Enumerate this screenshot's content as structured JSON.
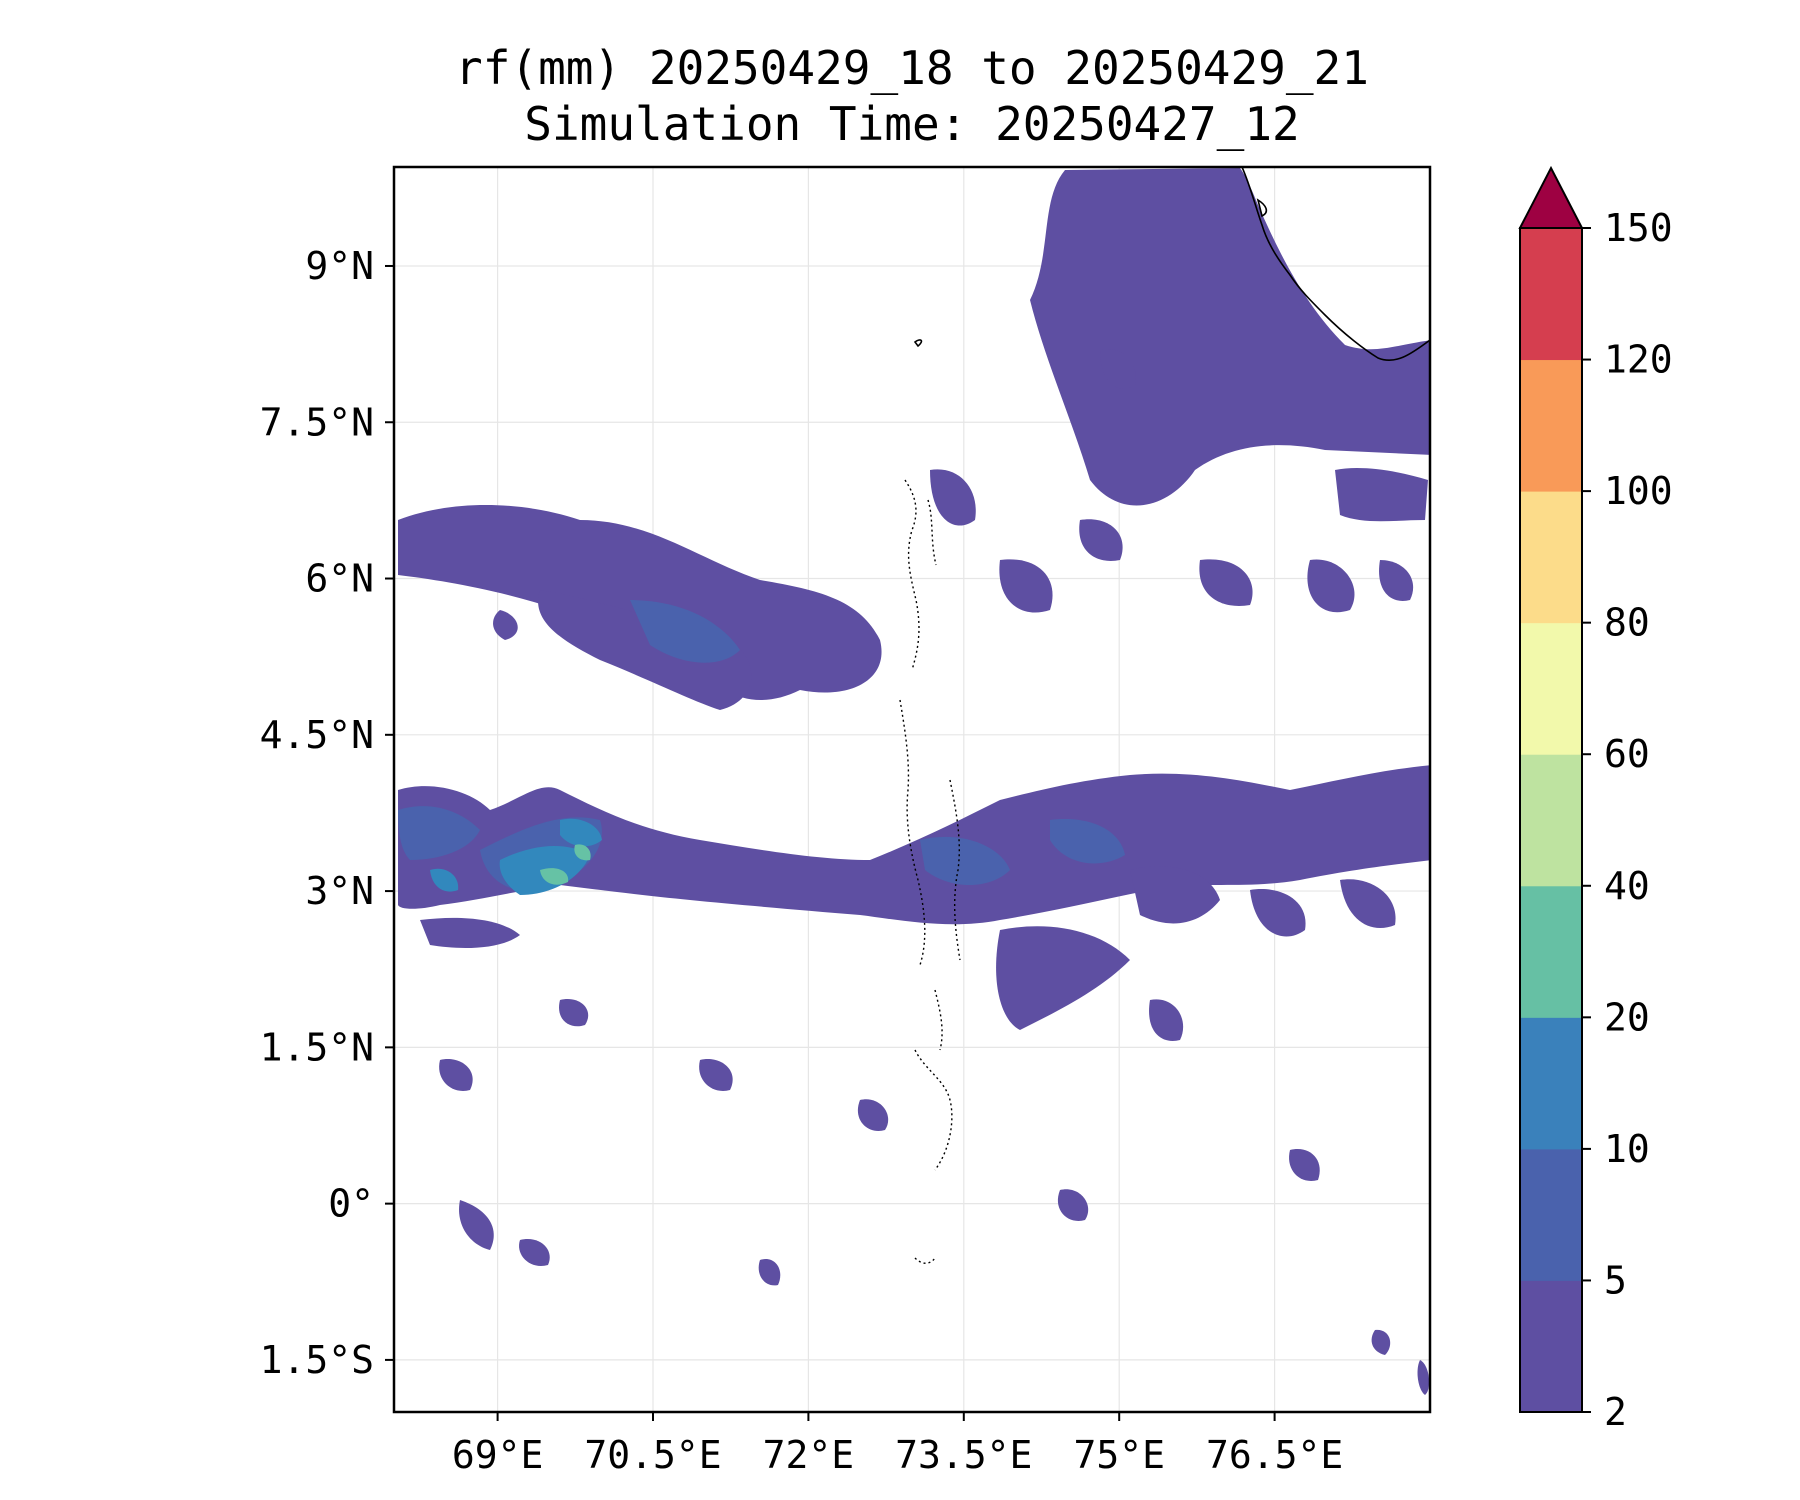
{
  "title": {
    "line1": "rf(mm) 20250429_18 to 20250429_21",
    "line2": "Simulation Time: 20250427_12"
  },
  "map": {
    "lon_range": [
      68.0,
      78.0
    ],
    "lat_range": [
      -2.0,
      9.95
    ],
    "x_ticks": [
      {
        "value": 69.0,
        "label": "69°E"
      },
      {
        "value": 70.5,
        "label": "70.5°E"
      },
      {
        "value": 72.0,
        "label": "72°E"
      },
      {
        "value": 73.5,
        "label": "73.5°E"
      },
      {
        "value": 75.0,
        "label": "75°E"
      },
      {
        "value": 76.5,
        "label": "76.5°E"
      }
    ],
    "y_ticks": [
      {
        "value": 9.0,
        "label": "9°N"
      },
      {
        "value": 7.5,
        "label": "7.5°N"
      },
      {
        "value": 6.0,
        "label": "6°N"
      },
      {
        "value": 4.5,
        "label": "4.5°N"
      },
      {
        "value": 3.0,
        "label": "3°N"
      },
      {
        "value": 1.5,
        "label": "1.5°N"
      },
      {
        "value": 0.0,
        "label": "0°"
      },
      {
        "value": -1.5,
        "label": "1.5°S"
      }
    ],
    "grid": true,
    "colors": {
      "light_rain": "#5e4fa2",
      "moderate_rain": "#4a62ad",
      "heavier_rain": "#3288bd",
      "heavy_rain": "#66c2a5",
      "coastline": "#000000"
    }
  },
  "colorbar": {
    "levels": [
      "2",
      "5",
      "10",
      "20",
      "40",
      "60",
      "80",
      "100",
      "120",
      "150"
    ],
    "colors": [
      "#5e4fa2",
      "#4a62ad",
      "#3a81bb",
      "#66c0a4",
      "#bee3a0",
      "#f2f9ab",
      "#fcdc8a",
      "#f99a58",
      "#d53e4f"
    ],
    "extend_color": "#9e0142",
    "extend": "max"
  }
}
